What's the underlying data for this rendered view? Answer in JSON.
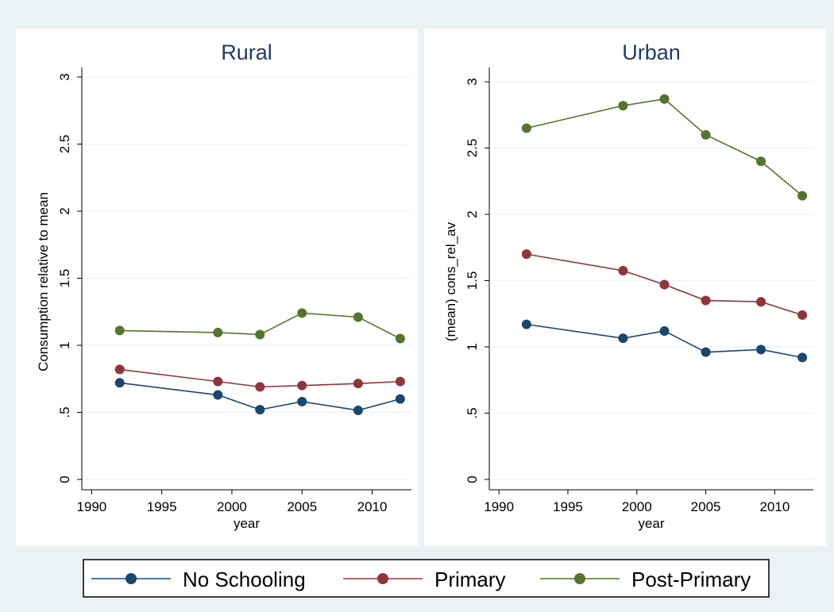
{
  "chart_data": [
    {
      "type": "line",
      "title": "Rural",
      "ylabel": "Consumption relative to mean",
      "xlabel": "year",
      "x": [
        1992,
        1999,
        2002,
        2005,
        2009,
        2012
      ],
      "series": [
        {
          "name": "No Schooling",
          "color": "#1a476f",
          "values": [
            0.72,
            0.63,
            0.52,
            0.58,
            0.515,
            0.6
          ]
        },
        {
          "name": "Primary",
          "color": "#90353b",
          "values": [
            0.82,
            0.73,
            0.69,
            0.7,
            0.715,
            0.73
          ]
        },
        {
          "name": "Post-Primary",
          "color": "#55752f",
          "values": [
            1.11,
            1.095,
            1.08,
            1.24,
            1.21,
            1.05
          ]
        }
      ],
      "xlim": [
        1989.3,
        2012.8
      ],
      "xticks": [
        1990,
        1995,
        2000,
        2005,
        2010
      ],
      "ylim": [
        -0.077,
        3.071
      ],
      "yticks": [
        0,
        {
          "value": 0.5,
          "label": ".5"
        },
        1,
        1.5,
        2,
        2.5,
        3
      ],
      "grid": true
    },
    {
      "type": "line",
      "title": "Urban",
      "ylabel": "(mean) cons_rel_av",
      "xlabel": "year",
      "x": [
        1992,
        1999,
        2002,
        2005,
        2009,
        2012
      ],
      "series": [
        {
          "color": "#1a476f",
          "values": [
            1.17,
            1.065,
            1.12,
            0.96,
            0.98,
            0.92
          ]
        },
        {
          "color": "#90353b",
          "values": [
            1.7,
            1.575,
            1.47,
            1.35,
            1.34,
            1.24
          ]
        },
        {
          "color": "#55752f",
          "values": [
            2.65,
            2.82,
            2.87,
            2.6,
            2.4,
            2.14
          ]
        }
      ],
      "xlim": [
        1989.3,
        2012.8
      ],
      "xticks": [
        1990,
        1995,
        2000,
        2005,
        2010
      ],
      "ylim": [
        -0.078,
        3.108
      ],
      "yticks": [
        0,
        {
          "value": 0.5,
          "label": ".5"
        },
        1,
        1.5,
        2,
        2.5,
        3
      ],
      "grid": true
    }
  ]
}
